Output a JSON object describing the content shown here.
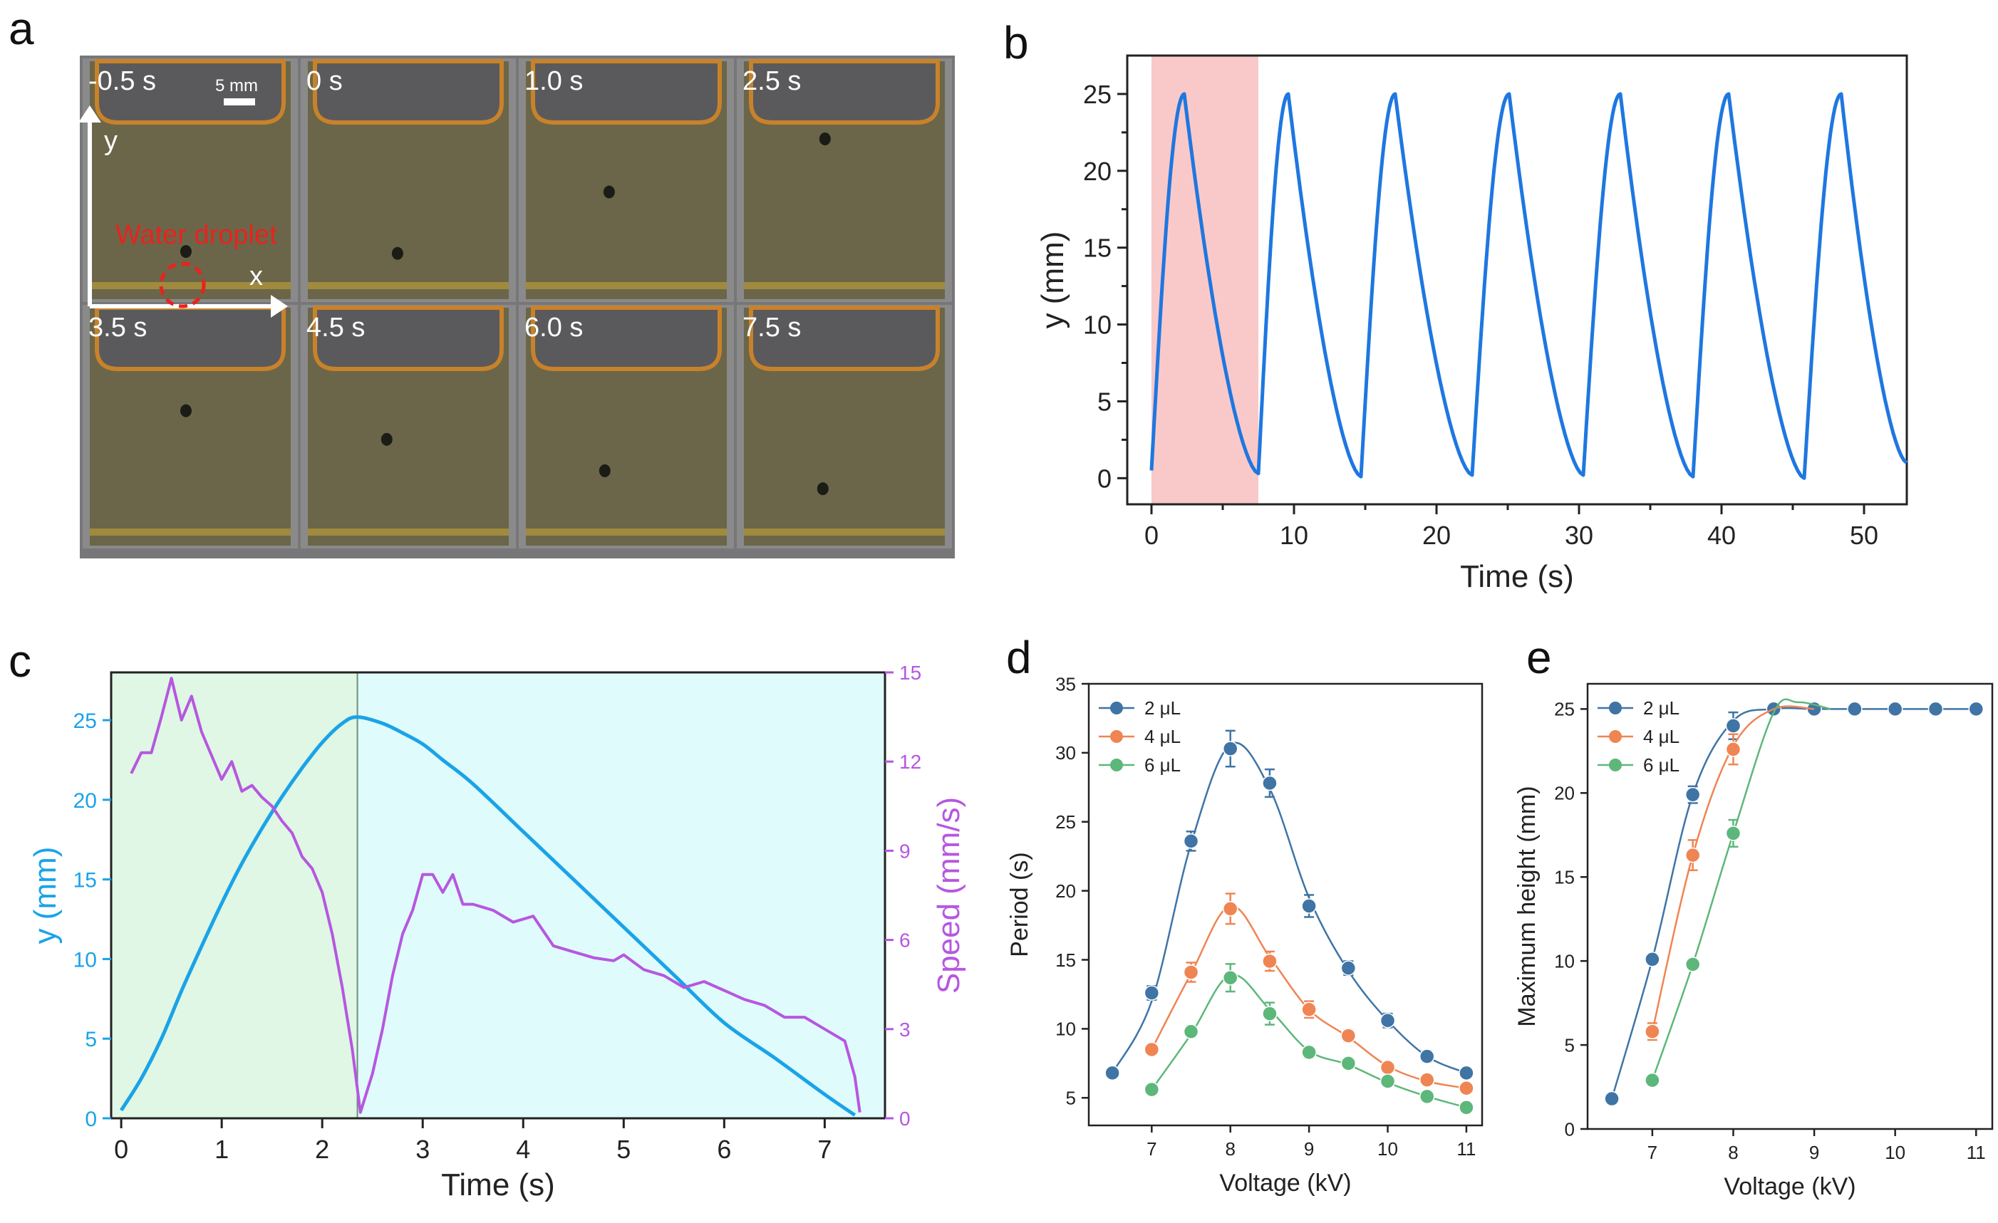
{
  "figure": {
    "panel_letters": [
      "a",
      "b",
      "c",
      "d",
      "e"
    ]
  },
  "panel_a": {
    "frames": [
      {
        "time": "-0.5 s",
        "droplet_y_mm": 0.6,
        "droplet_x_frac": 0.48
      },
      {
        "time": "0 s",
        "droplet_y_mm": 0.2,
        "droplet_x_frac": 0.45
      },
      {
        "time": "1.0 s",
        "droplet_y_mm": 13.5,
        "droplet_x_frac": 0.42
      },
      {
        "time": "2.5 s",
        "droplet_y_mm": 25.0,
        "droplet_x_frac": 0.41
      },
      {
        "time": "3.5 s",
        "droplet_y_mm": 19.5,
        "droplet_x_frac": 0.48
      },
      {
        "time": "4.5 s",
        "droplet_y_mm": 13.3,
        "droplet_x_frac": 0.4
      },
      {
        "time": "6.0 s",
        "droplet_y_mm": 6.5,
        "droplet_x_frac": 0.4
      },
      {
        "time": "7.5 s",
        "droplet_y_mm": 2.6,
        "droplet_x_frac": 0.4
      }
    ],
    "scale_bar_label": "5 mm",
    "y_axis_label": "y",
    "x_axis_label": "x",
    "annotation": "Water droplet",
    "colors": {
      "bath": "#6b6649",
      "frame": "#8a8a8a",
      "lid": "#5a5a5c",
      "rim": "#c8822a",
      "annotation": "#e8231d"
    }
  },
  "chart_data": [
    {
      "id": "b",
      "type": "line",
      "xlabel": "Time (s)",
      "ylabel": "y (mm)",
      "xlim": [
        -1.7,
        53
      ],
      "ylim": [
        -1.7,
        27.5
      ],
      "xticks": [
        0,
        10,
        20,
        30,
        40,
        50
      ],
      "yticks": [
        0,
        5,
        10,
        15,
        20,
        25
      ],
      "shaded_region_x": [
        0,
        7.5
      ],
      "color": "#1f77e0",
      "shade_color": "#f9c9c9",
      "series": {
        "name": "y",
        "x": [
          0,
          2.3,
          7.5,
          9.6,
          14.7,
          17.1,
          22.5,
          25.1,
          30.3,
          32.9,
          38.0,
          40.5,
          45.8,
          48.4,
          53
        ],
        "y": [
          0.5,
          25.0,
          0.3,
          25.0,
          0.1,
          25.0,
          0.2,
          25.0,
          0.2,
          25.0,
          0.1,
          25.0,
          0.0,
          25.0,
          1.0
        ]
      }
    },
    {
      "id": "c",
      "type": "line",
      "xlabel": "Time (s)",
      "ylabel": "y (mm)",
      "ylabel_right": "Speed (mm/s)",
      "xlim": [
        -0.1,
        7.6
      ],
      "ylim": [
        0,
        28
      ],
      "ylim_right": [
        0,
        15
      ],
      "xticks": [
        0,
        1,
        2,
        3,
        4,
        5,
        6,
        7
      ],
      "yticks": [
        0,
        5,
        10,
        15,
        20,
        25
      ],
      "yticks_right": [
        0,
        3,
        6,
        9,
        12,
        15
      ],
      "divider_x": 2.35,
      "rise_region_color": "#dff7e4",
      "fall_region_color": "#dffbfb",
      "series": [
        {
          "name": "y",
          "axis": "left",
          "color": "#1aa3e8",
          "x": [
            0,
            0.2,
            0.4,
            0.6,
            0.8,
            1.0,
            1.2,
            1.4,
            1.6,
            1.8,
            2.0,
            2.2,
            2.35,
            2.6,
            2.8,
            3.0,
            3.2,
            3.5,
            4.0,
            4.5,
            5.0,
            5.5,
            6.0,
            6.5,
            7.0,
            7.3
          ],
          "y": [
            0.5,
            2.5,
            5.0,
            8.0,
            10.8,
            13.5,
            16.0,
            18.2,
            20.2,
            22.0,
            23.6,
            24.8,
            25.2,
            24.8,
            24.2,
            23.5,
            22.5,
            21.0,
            18.0,
            15.0,
            12.0,
            9.0,
            6.0,
            3.8,
            1.5,
            0.2
          ]
        },
        {
          "name": "Speed",
          "axis": "right",
          "color": "#b657e0",
          "x": [
            0.1,
            0.2,
            0.3,
            0.4,
            0.5,
            0.6,
            0.7,
            0.8,
            0.9,
            1.0,
            1.1,
            1.2,
            1.3,
            1.4,
            1.5,
            1.6,
            1.7,
            1.8,
            1.9,
            2.0,
            2.1,
            2.2,
            2.3,
            2.38,
            2.5,
            2.6,
            2.7,
            2.8,
            2.9,
            3.0,
            3.1,
            3.2,
            3.3,
            3.4,
            3.5,
            3.7,
            3.9,
            4.1,
            4.3,
            4.5,
            4.7,
            4.9,
            5.0,
            5.2,
            5.4,
            5.6,
            5.8,
            6.0,
            6.2,
            6.4,
            6.6,
            6.8,
            7.0,
            7.2,
            7.3,
            7.35
          ],
          "y": [
            11.6,
            12.3,
            12.3,
            13.5,
            14.8,
            13.4,
            14.2,
            13.0,
            12.2,
            11.4,
            12.0,
            11.0,
            11.2,
            10.8,
            10.5,
            10.0,
            9.6,
            8.8,
            8.4,
            7.6,
            6.2,
            4.4,
            2.3,
            0.2,
            1.5,
            3.0,
            4.8,
            6.2,
            7.0,
            8.2,
            8.2,
            7.6,
            8.2,
            7.2,
            7.2,
            7.0,
            6.6,
            6.8,
            5.8,
            5.6,
            5.4,
            5.3,
            5.5,
            5.0,
            4.8,
            4.4,
            4.6,
            4.3,
            4.0,
            3.8,
            3.4,
            3.4,
            3.0,
            2.6,
            1.4,
            0.2
          ]
        }
      ]
    },
    {
      "id": "d",
      "type": "scatter",
      "xlabel": "Voltage (kV)",
      "ylabel": "Period (s)",
      "xlim": [
        6.2,
        11.2
      ],
      "ylim": [
        3,
        35
      ],
      "xticks": [
        7,
        8,
        9,
        10,
        11
      ],
      "yticks": [
        5,
        10,
        15,
        20,
        25,
        30,
        35
      ],
      "legend_position": "top-left",
      "series": [
        {
          "name": "2 μL",
          "color": "#3f74a5",
          "x": [
            6.5,
            7,
            7.5,
            8,
            8.5,
            9,
            9.5,
            10,
            10.5,
            11
          ],
          "y": [
            6.8,
            12.6,
            23.6,
            30.3,
            27.8,
            18.9,
            14.4,
            10.6,
            8.0,
            6.8
          ],
          "err": [
            0,
            0.5,
            0.7,
            1.3,
            1.0,
            0.8,
            0.5,
            0.5,
            0.4,
            0.3
          ]
        },
        {
          "name": "4 μL",
          "color": "#ef8553",
          "x": [
            7,
            7.5,
            8,
            8.5,
            9,
            9.5,
            10,
            10.5,
            11
          ],
          "y": [
            8.5,
            14.1,
            18.7,
            14.9,
            11.4,
            9.5,
            7.2,
            6.3,
            5.7
          ],
          "err": [
            0.3,
            0.7,
            1.1,
            0.7,
            0.6,
            0.4,
            0.3,
            0.3,
            0.3
          ]
        },
        {
          "name": "6 μL",
          "color": "#5db77a",
          "x": [
            7,
            7.5,
            8,
            8.5,
            9,
            9.5,
            10,
            10.5,
            11
          ],
          "y": [
            5.6,
            9.8,
            13.7,
            11.1,
            8.3,
            7.5,
            6.2,
            5.1,
            4.3
          ],
          "err": [
            0.3,
            0.4,
            1.0,
            0.8,
            0.4,
            0.3,
            0.3,
            0.3,
            0.3
          ]
        }
      ]
    },
    {
      "id": "e",
      "type": "scatter",
      "xlabel": "Voltage (kV)",
      "ylabel": "Maximum height (mm)",
      "xlim": [
        6.2,
        11.2
      ],
      "ylim": [
        0,
        26.5
      ],
      "xticks": [
        7,
        8,
        9,
        10,
        11
      ],
      "yticks": [
        0,
        5,
        10,
        15,
        20,
        25
      ],
      "legend_position": "top-left",
      "series": [
        {
          "name": "2 μL",
          "color": "#3f74a5",
          "x": [
            6.5,
            7,
            7.5,
            8,
            8.5,
            9,
            9.5,
            10,
            10.5,
            11
          ],
          "y": [
            1.8,
            10.1,
            19.9,
            24.0,
            25.0,
            25.0,
            25.0,
            25.0,
            25.0,
            25.0
          ],
          "err": [
            0.2,
            0.3,
            0.5,
            0.8,
            0,
            0,
            0,
            0,
            0,
            0
          ]
        },
        {
          "name": "4 μL",
          "color": "#ef8553",
          "x": [
            7,
            7.5,
            8
          ],
          "y": [
            5.8,
            16.3,
            22.6
          ],
          "err": [
            0.5,
            0.9,
            0.9
          ]
        },
        {
          "name": "6 μL",
          "color": "#5db77a",
          "x": [
            7,
            7.5,
            8
          ],
          "y": [
            2.9,
            9.8,
            17.6
          ],
          "err": [
            0.2,
            0.3,
            0.8
          ]
        }
      ]
    }
  ]
}
